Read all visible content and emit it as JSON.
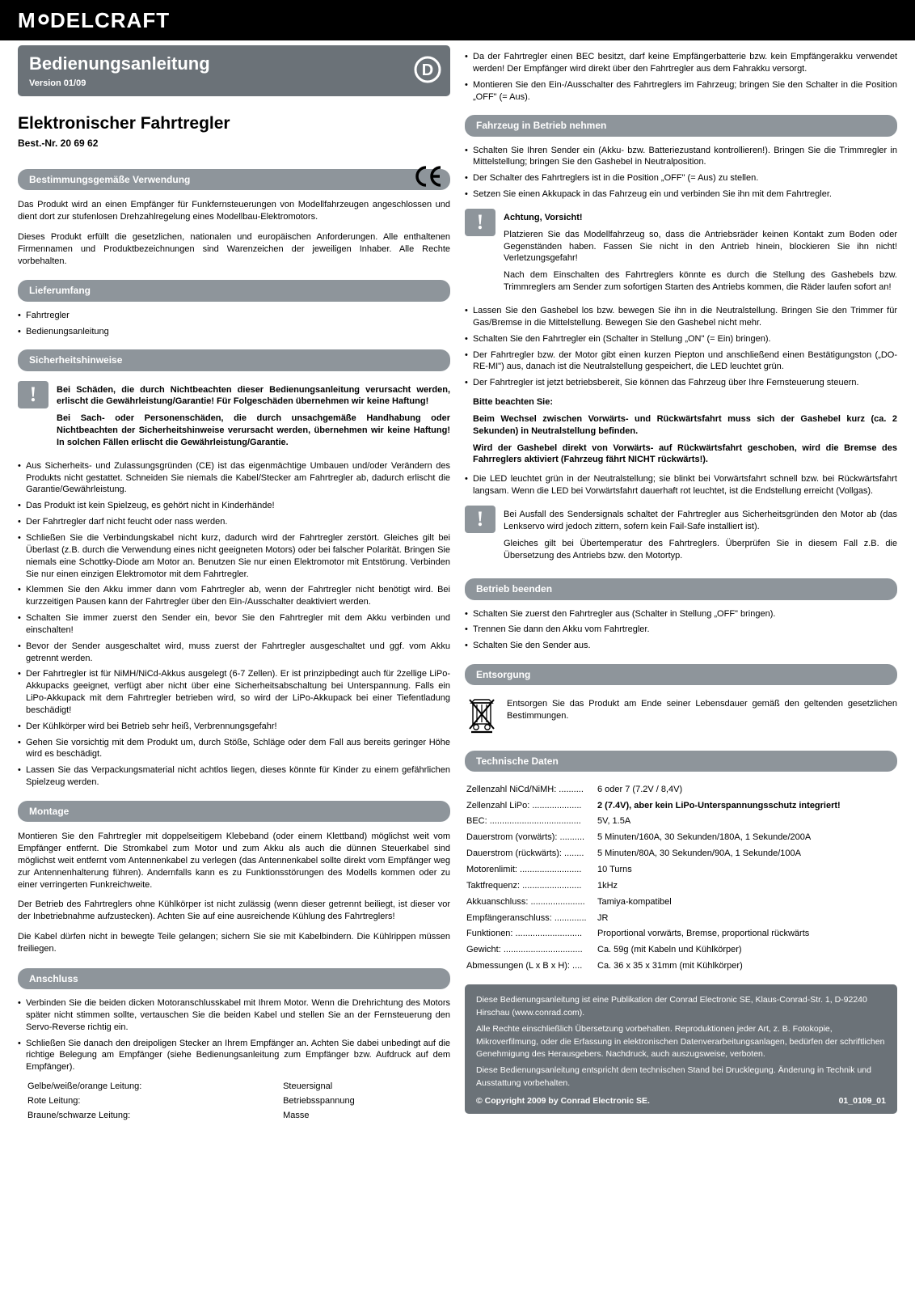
{
  "logo_text": "MODELCRAFT",
  "colors": {
    "header_bg": "#6b7278",
    "section_bg": "#8e959b",
    "icon_bg": "#8e959b",
    "text_white": "#ffffff",
    "text_black": "#000000",
    "logo_bg": "#000000"
  },
  "title": {
    "main": "Bedienungsanleitung",
    "version": "Version 01/09",
    "badge_letter": "D"
  },
  "product": {
    "name": "Elektronischer Fahrtregler",
    "order": "Best.-Nr. 20 69 62",
    "ce": "CE"
  },
  "left": {
    "s1": {
      "heading": "Bestimmungsgemäße Verwendung",
      "p1": "Das Produkt wird an einen Empfänger für Funkfernsteuerungen von Modellfahrzeugen angeschlossen und dient dort zur stufenlosen Drehzahlregelung eines Modellbau-Elektromotors.",
      "p2": "Dieses Produkt erfüllt die gesetzlichen, nationalen und europäischen Anforderungen. Alle enthaltenen Firmennamen und Produktbezeichnungen sind Warenzeichen der jeweiligen Inhaber. Alle Rechte vorbehalten."
    },
    "s2": {
      "heading": "Lieferumfang",
      "items": [
        "Fahrtregler",
        "Bedienungsanleitung"
      ]
    },
    "s3": {
      "heading": "Sicherheitshinweise",
      "warn1": "Bei Schäden, die durch Nichtbeachten dieser Bedienungsanleitung verursacht werden, erlischt die Gewährleistung/Garantie! Für Folgeschäden übernehmen wir keine Haftung!",
      "warn2": "Bei Sach- oder Personenschäden, die durch unsachgemäße Handhabung oder Nichtbeachten der Sicherheitshinweise verursacht werden, übernehmen wir keine Haftung! In solchen Fällen erlischt die Gewährleistung/Garantie.",
      "items": [
        "Aus Sicherheits- und Zulassungsgründen (CE) ist das eigenmächtige Umbauen und/oder Verändern des Produkts nicht gestattet. Schneiden Sie niemals die Kabel/Stecker am Fahrtregler ab, dadurch erlischt die Garantie/Gewährleistung.",
        "Das Produkt ist kein Spielzeug, es gehört nicht in Kinderhände!",
        "Der Fahrtregler darf nicht feucht oder nass werden.",
        "Schließen Sie die Verbindungskabel nicht kurz, dadurch wird der Fahrtregler zerstört. Gleiches gilt bei Überlast (z.B. durch die Verwendung eines nicht geeigneten Motors) oder bei falscher Polarität. Bringen Sie niemals eine Schottky-Diode am Motor an. Benutzen Sie nur einen Elektromotor mit Entstörung. Verbinden Sie nur einen einzigen Elektromotor mit dem Fahrtregler.",
        "Klemmen Sie den Akku immer dann vom Fahrtregler ab, wenn der Fahrtregler nicht benötigt wird. Bei kurzzeitigen Pausen kann der Fahrtregler über den Ein-/Ausschalter deaktiviert werden.",
        "Schalten Sie immer zuerst den Sender ein, bevor Sie den Fahrtregler mit dem Akku verbinden und einschalten!",
        "Bevor der Sender ausgeschaltet wird, muss zuerst der Fahrtregler ausgeschaltet und ggf. vom Akku getrennt werden.",
        "Der Fahrtregler ist für NiMH/NiCd-Akkus ausgelegt (6-7 Zellen). Er ist prinzipbedingt auch für 2zellige LiPo-Akkupacks geeignet, verfügt aber nicht über eine Sicherheitsabschaltung bei Unterspannung. Falls ein LiPo-Akkupack mit dem Fahrtregler betrieben wird, so wird der LiPo-Akkupack bei einer Tiefentladung beschädigt!",
        "Der Kühlkörper wird bei Betrieb sehr heiß, Verbrennungsgefahr!",
        "Gehen Sie vorsichtig mit dem Produkt um, durch Stöße, Schläge oder dem Fall aus bereits geringer Höhe wird es beschädigt.",
        "Lassen Sie das Verpackungsmaterial nicht achtlos liegen, dieses könnte für Kinder zu einem gefährlichen Spielzeug werden."
      ]
    },
    "s4": {
      "heading": "Montage",
      "p1": "Montieren Sie den Fahrtregler mit doppelseitigem Klebeband (oder einem Klettband) möglichst weit vom Empfänger entfernt. Die Stromkabel zum Motor und zum Akku als auch die dünnen Steuerkabel sind möglichst weit entfernt vom Antennenkabel zu verlegen (das Antennenkabel sollte direkt vom Empfänger weg zur Antennenhalterung führen). Andernfalls kann es zu Funktionsstörungen des Modells kommen oder zu einer verringerten Funkreichweite.",
      "p2": "Der Betrieb des Fahrtreglers ohne Kühlkörper ist nicht zulässig (wenn dieser getrennt beiliegt, ist dieser vor der Inbetriebnahme aufzustecken). Achten Sie auf eine ausreichende Kühlung des Fahrtreglers!",
      "p3": "Die Kabel dürfen nicht in bewegte Teile gelangen; sichern Sie sie mit Kabelbindern. Die Kühlrippen müssen freiliegen."
    },
    "s5": {
      "heading": "Anschluss",
      "items": [
        "Verbinden Sie die beiden dicken Motoranschlusskabel mit Ihrem Motor. Wenn die Drehrichtung des Motors später nicht stimmen sollte, vertauschen Sie die beiden Kabel und stellen Sie an der Fernsteuerung den Servo-Reverse richtig ein.",
        "Schließen Sie danach den dreipoligen Stecker an Ihrem Empfänger an. Achten Sie dabei unbedingt auf die richtige Belegung am Empfänger (siehe Bedienungsanleitung zum Empfänger bzw. Aufdruck auf dem Empfänger)."
      ],
      "wiring": [
        {
          "lead": "Gelbe/weiße/orange Leitung:",
          "role": "Steuersignal"
        },
        {
          "lead": "Rote Leitung:",
          "role": "Betriebsspannung"
        },
        {
          "lead": "Braune/schwarze Leitung:",
          "role": "Masse"
        }
      ]
    }
  },
  "right": {
    "top_items": [
      "Da der Fahrtregler einen BEC besitzt, darf keine Empfängerbatterie bzw. kein Empfängerakku verwendet werden! Der Empfänger wird direkt über den Fahrtregler aus dem Fahrakku versorgt.",
      "Montieren Sie den Ein-/Ausschalter des Fahrtreglers im Fahrzeug; bringen Sie den Schalter in die Position „OFF\" (= Aus)."
    ],
    "s6": {
      "heading": "Fahrzeug in Betrieb nehmen",
      "items1": [
        "Schalten Sie Ihren Sender ein (Akku- bzw. Batteriezustand kontrollieren!). Bringen Sie die Trimmregler in Mittelstellung; bringen Sie den Gashebel in Neutralposition.",
        "Der Schalter des Fahrtreglers ist in die Position „OFF\" (= Aus) zu stellen.",
        "Setzen Sie einen Akkupack in das Fahrzeug ein und verbinden Sie ihn mit dem Fahrtregler."
      ],
      "warn_title": "Achtung, Vorsicht!",
      "warn_p1": "Platzieren Sie das Modellfahrzeug so, dass die Antriebsräder keinen Kontakt zum Boden oder Gegenständen haben. Fassen Sie nicht in den Antrieb hinein, blockieren Sie ihn nicht! Verletzungsgefahr!",
      "warn_p2": "Nach dem Einschalten des Fahrtreglers könnte es durch die Stellung des Gashebels bzw. Trimmreglers am Sender zum sofortigen Starten des Antriebs kommen, die Räder laufen sofort an!",
      "items2": [
        "Lassen Sie den Gashebel los bzw. bewegen Sie ihn in die Neutralstellung. Bringen Sie den Trimmer für Gas/Bremse in die Mittelstellung. Bewegen Sie den Gashebel nicht mehr.",
        "Schalten Sie den Fahrtregler ein (Schalter in Stellung „ON\" (= Ein) bringen).",
        "Der Fahrtregler bzw. der Motor gibt einen kurzen Piepton und anschließend einen Bestätigungston („DO-RE-MI\") aus, danach ist die Neutralstellung gespeichert, die LED leuchtet grün.",
        "Der Fahrtregler ist jetzt betriebsbereit, Sie können das Fahrzeug über Ihre Fernsteuerung steuern."
      ],
      "note_title": "Bitte beachten Sie:",
      "note_p1": "Beim Wechsel zwischen Vorwärts- und Rückwärtsfahrt muss sich der Gashebel kurz (ca. 2 Sekunden) in Neutralstellung befinden.",
      "note_p2": "Wird der Gashebel direkt von Vorwärts- auf Rückwärtsfahrt geschoben, wird die Bremse des Fahrreglers aktiviert (Fahrzeug fährt NICHT rückwärts!).",
      "item3": "Die LED leuchtet grün in der Neutralstellung; sie blinkt bei Vorwärtsfahrt schnell bzw. bei Rückwärtsfahrt langsam. Wenn die LED bei Vorwärtsfahrt dauerhaft rot leuchtet, ist die Endstellung erreicht (Vollgas).",
      "warn2_p1": "Bei Ausfall des Sendersignals schaltet der Fahrtregler aus Sicherheitsgründen den Motor ab (das Lenkservo wird jedoch zittern, sofern kein Fail-Safe installiert ist).",
      "warn2_p2": "Gleiches gilt bei Übertemperatur des Fahrtreglers. Überprüfen Sie in diesem Fall z.B. die Übersetzung des Antriebs bzw. den Motortyp."
    },
    "s7": {
      "heading": "Betrieb beenden",
      "items": [
        "Schalten Sie zuerst den Fahrtregler aus (Schalter in Stellung „OFF\" bringen).",
        "Trennen Sie dann den Akku vom Fahrtregler.",
        "Schalten Sie den Sender aus."
      ]
    },
    "s8": {
      "heading": "Entsorgung",
      "text": "Entsorgen Sie das Produkt am Ende seiner Lebensdauer gemäß den geltenden gesetzlichen Bestimmungen."
    },
    "s9": {
      "heading": "Technische Daten",
      "rows": [
        {
          "k": "Zellenzahl NiCd/NiMH: ..........",
          "v": "6 oder 7 (7.2V / 8,4V)"
        },
        {
          "k": "Zellenzahl LiPo: ....................",
          "v": "2 (7.4V), aber kein LiPo-Unterspannungsschutz integriert!",
          "bold": true
        },
        {
          "k": "BEC: .....................................",
          "v": "5V, 1.5A"
        },
        {
          "k": "Dauerstrom (vorwärts): ..........",
          "v": "5 Minuten/160A, 30 Sekunden/180A, 1 Sekunde/200A"
        },
        {
          "k": "Dauerstrom (rückwärts): ........",
          "v": "5 Minuten/80A, 30 Sekunden/90A, 1 Sekunde/100A"
        },
        {
          "k": "Motorenlimit: .........................",
          "v": "10 Turns"
        },
        {
          "k": "Taktfrequenz: ........................",
          "v": "1kHz"
        },
        {
          "k": "Akkuanschluss: ......................",
          "v": "Tamiya-kompatibel"
        },
        {
          "k": "Empfängeranschluss: .............",
          "v": "JR"
        },
        {
          "k": "Funktionen: ...........................",
          "v": "Proportional vorwärts, Bremse, proportional rückwärts"
        },
        {
          "k": "Gewicht: ................................",
          "v": "Ca. 59g (mit Kabeln und Kühlkörper)"
        },
        {
          "k": "Abmessungen (L x B x H): ....",
          "v": "Ca. 36 x 35 x 31mm (mit Kühlkörper)"
        }
      ]
    },
    "footer": {
      "p1": "Diese Bedienungsanleitung ist eine Publikation der Conrad Electronic SE, Klaus-Conrad-Str. 1, D-92240 Hirschau (www.conrad.com).",
      "p2": "Alle Rechte einschließlich Übersetzung vorbehalten. Reproduktionen jeder Art, z. B. Fotokopie, Mikroverfilmung, oder die Erfassung in elektronischen Datenverarbeitungsanlagen, bedürfen der schriftlichen Genehmigung des Herausgebers. Nachdruck, auch auszugsweise, verboten.",
      "p3": "Diese Bedienungsanleitung entspricht dem technischen Stand bei Drucklegung. Änderung in Technik und Ausstattung vorbehalten.",
      "copyright": "© Copyright 2009 by Conrad Electronic SE.",
      "code": "01_0109_01"
    }
  }
}
